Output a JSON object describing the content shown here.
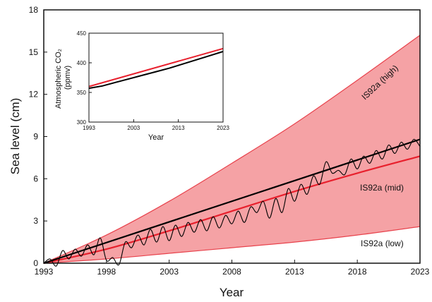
{
  "chart_data": [
    {
      "type": "area",
      "xlabel": "Year",
      "ylabel": "Sea level (cm)",
      "xlim": [
        1993,
        2023
      ],
      "ylim": [
        0,
        18
      ],
      "x_ticks": [
        "1993",
        "1998",
        "2003",
        "2008",
        "2013",
        "2018",
        "2023"
      ],
      "y_ticks": [
        "0",
        "3",
        "6",
        "9",
        "12",
        "15",
        "18"
      ],
      "projection_x": [
        1993,
        1998,
        2003,
        2008,
        2013,
        2018,
        2023
      ],
      "projection_high": [
        0.0,
        2.0,
        4.4,
        7.1,
        9.9,
        13.0,
        16.2
      ],
      "projection_mid": [
        0.0,
        1.0,
        2.3,
        3.7,
        5.1,
        6.4,
        7.6
      ],
      "projection_low": [
        0.0,
        0.3,
        0.7,
        1.1,
        1.5,
        2.0,
        2.6
      ],
      "observed_trend": {
        "x": [
          1993,
          2023
        ],
        "y": [
          0.0,
          8.8
        ]
      },
      "observed_x": [
        1993.0,
        1993.5,
        1994.0,
        1994.5,
        1995.0,
        1995.5,
        1996.0,
        1996.5,
        1997.0,
        1997.5,
        1998.0,
        1998.5,
        1999.0,
        1999.5,
        2000.0,
        2000.5,
        2001.0,
        2001.5,
        2002.0,
        2002.5,
        2003.0,
        2003.5,
        2004.0,
        2004.5,
        2005.0,
        2005.5,
        2006.0,
        2006.5,
        2007.0,
        2007.5,
        2008.0,
        2008.5,
        2009.0,
        2009.5,
        2010.0,
        2010.5,
        2011.0,
        2011.5,
        2012.0,
        2012.5,
        2013.0,
        2013.5,
        2014.0,
        2014.5,
        2015.0,
        2015.5,
        2016.0,
        2016.5,
        2017.0,
        2017.5,
        2018.0,
        2018.5,
        2019.0,
        2019.5,
        2020.0,
        2020.5,
        2021.0,
        2021.5,
        2022.0,
        2022.5,
        2023.0
      ],
      "observed_y": [
        0.0,
        0.3,
        -0.2,
        0.9,
        0.3,
        1.0,
        0.5,
        1.3,
        0.6,
        1.8,
        0.2,
        0.4,
        -0.1,
        1.5,
        1.1,
        2.0,
        1.3,
        2.4,
        1.5,
        2.6,
        1.6,
        2.7,
        1.9,
        2.9,
        2.2,
        3.1,
        2.3,
        3.3,
        2.5,
        3.4,
        2.8,
        3.7,
        2.9,
        4.0,
        3.6,
        4.4,
        3.2,
        4.6,
        3.6,
        5.3,
        4.4,
        5.6,
        4.9,
        6.2,
        5.6,
        7.2,
        6.4,
        6.6,
        6.3,
        7.4,
        6.7,
        7.6,
        7.1,
        8.0,
        7.4,
        8.4,
        7.8,
        8.6,
        8.1,
        8.8,
        8.3
      ],
      "series": [
        {
          "name": "IS92a (high)",
          "color": "#e8434d"
        },
        {
          "name": "IS92a (mid)",
          "color": "#e8202d"
        },
        {
          "name": "IS92a (low)",
          "color": "#e8434d"
        }
      ],
      "band_fill": "#f5a2a5",
      "observed_color": "#000000",
      "grid": false
    },
    {
      "type": "line",
      "xlabel": "Year",
      "ylabel": "Atmospheric CO₂ (ppmv)",
      "xlim": [
        1993,
        2023
      ],
      "ylim": [
        300,
        450
      ],
      "x_ticks": [
        "1993",
        "2003",
        "2013",
        "2023"
      ],
      "y_ticks": [
        "300",
        "350",
        "400",
        "450"
      ],
      "series": [
        {
          "name": "",
          "color": "#e8202d",
          "x": [
            1993,
            2023
          ],
          "values": [
            360,
            424
          ]
        },
        {
          "name": "",
          "color": "#000000",
          "x": [
            1993,
            1996,
            1999,
            2002,
            2005,
            2008,
            2011,
            2014,
            2017,
            2020,
            2023
          ],
          "values": [
            357,
            361,
            367,
            373,
            379,
            385,
            391,
            398,
            405,
            412,
            419
          ]
        }
      ],
      "grid": false
    }
  ],
  "annotations": {
    "high": "IS92a (high)",
    "mid": "IS92a (mid)",
    "low": "IS92a (low)"
  }
}
